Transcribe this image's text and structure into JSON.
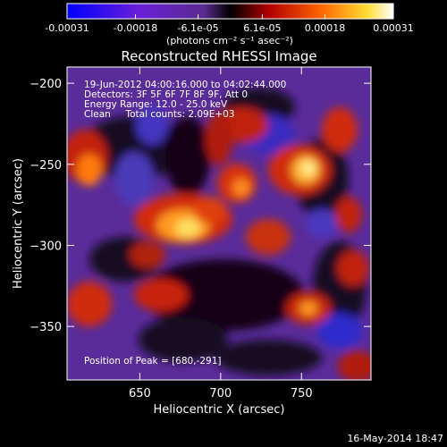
{
  "colorbar": {
    "ticks": [
      "-0.00031",
      "-0.00018",
      "-6.1e-05",
      "6.1e-05",
      "0.00018",
      "0.00031"
    ],
    "tick_values": [
      -0.00031,
      -0.00018,
      -6.1e-05,
      6.1e-05,
      0.00018,
      0.00031
    ],
    "range": [
      -0.00031,
      0.00031
    ],
    "unit_label": "(photons cm⁻² s⁻¹ asec⁻²)",
    "colors": [
      "#0000ff",
      "#8a2be2",
      "#000000",
      "#b30000",
      "#ff6600",
      "#ffff66",
      "#ffffff"
    ]
  },
  "plot": {
    "title": "Reconstructed RHESSI Image",
    "info_lines": [
      "19-Jun-2012 04:00:16.000 to 04:02:44.000",
      "Detectors: 3F 5F 6F 7F 8F 9F, Att 0",
      "Energy Range: 12.0 - 25.0 keV",
      "Clean     Total counts: 2.09E+03"
    ],
    "peak_label": "Position of Peak = [680,-291]",
    "xlabel": "Heliocentric X (arcsec)",
    "ylabel": "Heliocentric Y (arcsec)",
    "xticks": [
      {
        "label": "650",
        "value": 650
      },
      {
        "label": "700",
        "value": 700
      },
      {
        "label": "750",
        "value": 750
      }
    ],
    "yticks": [
      {
        "label": "−200",
        "value": -200
      },
      {
        "label": "−250",
        "value": -250
      },
      {
        "label": "−300",
        "value": -300
      },
      {
        "label": "−350",
        "value": -350
      }
    ],
    "xlim": [
      605,
      793
    ],
    "ylim": [
      -383,
      -190
    ]
  },
  "footer": {
    "timestamp": "16-May-2014 18:47"
  }
}
